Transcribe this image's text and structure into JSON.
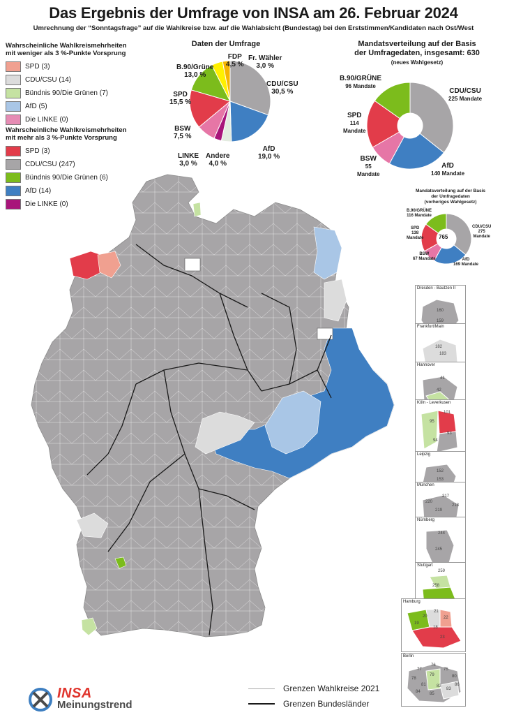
{
  "title": "Das Ergebnis der Umfrage von INSA am 26. Februar 2024",
  "subtitle": "Umrechnung der “Sonntagsfrage” auf die Wahlkreise bzw. auf die Wahlabsicht (Bundestag) bei den Erststimmen/Kandidaten nach Ost/West",
  "legend_under3": {
    "heading_line1": "Wahrscheinliche Wahlkreismehrheiten",
    "heading_line2": "mit weniger als 3 %-Punkte Vorsprung",
    "items": [
      {
        "label": "SPD (3)",
        "color": "#f0a090"
      },
      {
        "label": "CDU/CSU (14)",
        "color": "#dcdcdc"
      },
      {
        "label": "Bündnis 90/Die Grünen (7)",
        "color": "#c5e2a2"
      },
      {
        "label": "AfD (5)",
        "color": "#a9c6e6"
      },
      {
        "label": "Die LINKE (0)",
        "color": "#e68cb4"
      }
    ]
  },
  "legend_over3": {
    "heading_line1": "Wahrscheinliche Wahlkreismehrheiten",
    "heading_line2": "mit mehr als 3 %-Punkte Vorsprung",
    "items": [
      {
        "label": "SPD (3)",
        "color": "#e23c4a"
      },
      {
        "label": "CDU/CSU (247)",
        "color": "#a7a5a7"
      },
      {
        "label": "Bündnis 90/Die Grünen (6)",
        "color": "#7cbc1c"
      },
      {
        "label": "AfD (14)",
        "color": "#3f7fc2"
      },
      {
        "label": "Die LINKE (0)",
        "color": "#a8147a"
      }
    ]
  },
  "chart_data": [
    {
      "type": "pie",
      "title": "Daten der Umfrage",
      "categories": [
        "CDU/CSU",
        "AfD",
        "Andere",
        "LINKE",
        "BSW",
        "SPD",
        "B.90/Grüne",
        "FDP",
        "Fr. Wähler"
      ],
      "values": [
        30.5,
        19.0,
        4.0,
        3.0,
        7.5,
        15.5,
        13.0,
        4.5,
        3.0
      ],
      "value_labels": [
        "30,5 %",
        "19,0 %",
        "4,0 %",
        "3,0 %",
        "7,5 %",
        "15,5 %",
        "13,0 %",
        "4,5 %",
        "3,0 %"
      ],
      "colors": [
        "#a7a5a7",
        "#3f7fc2",
        "#e3ebe0",
        "#a8147a",
        "#e676a6",
        "#e23c4a",
        "#7cbc1c",
        "#fff000",
        "#f7b500"
      ]
    },
    {
      "type": "pie",
      "title": "Mandatsverteilung auf der Basis der Umfragedaten, insgesamt: 630",
      "subtitle": "(neues Wahlgesetz)",
      "categories": [
        "CDU/CSU",
        "AfD",
        "BSW",
        "SPD",
        "B.90/GRÜNE"
      ],
      "values": [
        225,
        140,
        55,
        114,
        96
      ],
      "colors": [
        "#a7a5a7",
        "#3f7fc2",
        "#e676a6",
        "#e23c4a",
        "#7cbc1c"
      ],
      "total": 630
    },
    {
      "type": "pie",
      "title": "Mandatsverteilung auf der Basis der Umfragedaten (vorheriges Wahlgesetz)",
      "categories": [
        "CDU/CSU",
        "AfD",
        "BSW",
        "SPD",
        "B.90/GRÜNE"
      ],
      "values": [
        275,
        169,
        67,
        138,
        116
      ],
      "colors": [
        "#a7a5a7",
        "#3f7fc2",
        "#e676a6",
        "#e23c4a",
        "#7cbc1c"
      ],
      "total": 765
    }
  ],
  "pie2_labels": {
    "title_line1": "Mandatsverteilung auf der Basis",
    "title_line2": "der Umfragedaten, insgesamt: 630",
    "sub": "(neues Wahlgesetz)",
    "cdu": [
      "CDU/CSU",
      "225 Mandate"
    ],
    "afd": [
      "AfD",
      "140 Mandate"
    ],
    "bsw": [
      "BSW",
      "55",
      "Mandate"
    ],
    "spd": [
      "SPD",
      "114",
      "Mandate"
    ],
    "gruene": [
      "B.90/GRÜNE",
      "96 Mandate"
    ]
  },
  "pie3_labels": {
    "title_line1": "Mandatsverteilung auf der Basis",
    "title_line2": "der Umfragedaten",
    "title_line3": "(vorheriges Wahlgesetz)",
    "total": "765",
    "cdu": [
      "CDU/CSU",
      "275",
      "Mandate"
    ],
    "afd": [
      "AfD",
      "169 Mandate"
    ],
    "bsw": [
      "BSW",
      "67 Mandate"
    ],
    "spd": [
      "SPD",
      "138",
      "Mandate"
    ],
    "gruene": [
      "B.90/GRÜNE",
      "116 Mandate"
    ]
  },
  "insets": [
    {
      "title": "Dresden - Bautzen II",
      "numbers": [
        "160",
        "159"
      ]
    },
    {
      "title": "Frankfurt/Main",
      "numbers": [
        "182",
        "183"
      ]
    },
    {
      "title": "Hannover",
      "numbers": [
        "41",
        "42"
      ]
    },
    {
      "title": "Köln - Leverkusen",
      "numbers": [
        "101",
        "95",
        "93",
        "94"
      ]
    },
    {
      "title": "Leipzig",
      "numbers": [
        "152",
        "153"
      ]
    },
    {
      "title": "München",
      "numbers": [
        "217",
        "220",
        "219",
        "218"
      ]
    },
    {
      "title": "Nürnberg",
      "numbers": [
        "244",
        "245"
      ]
    },
    {
      "title": "Stuttgart",
      "numbers": [
        "259",
        "258"
      ]
    },
    {
      "title": "Hamburg",
      "numbers": [
        "21",
        "20",
        "22",
        "19",
        "18",
        "23"
      ]
    },
    {
      "title": "Berlin",
      "numbers": [
        "76",
        "77",
        "75",
        "78",
        "79",
        "80",
        "81",
        "82",
        "83",
        "84",
        "85",
        "86"
      ]
    }
  ],
  "map_legend": {
    "wahlkreise": "Grenzen Wahlkreise 2021",
    "bundeslaender": "Grenzen Bundesländer"
  },
  "logo": {
    "brand": "INSA",
    "sub": "Meinungstrend"
  }
}
